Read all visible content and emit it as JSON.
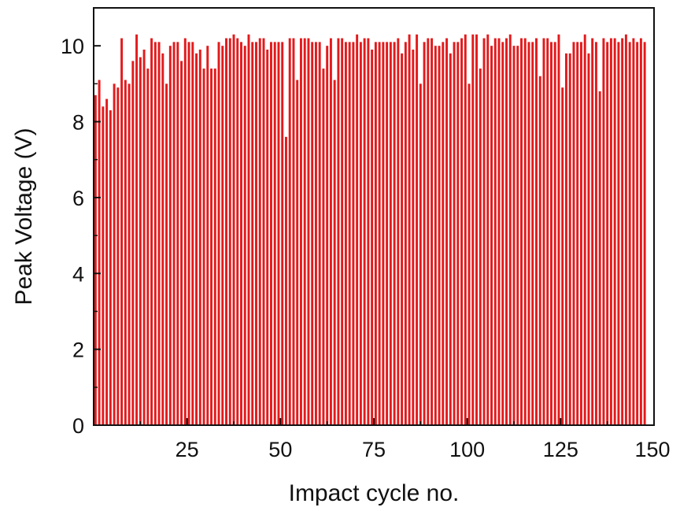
{
  "chart_data": {
    "type": "bar",
    "title": "",
    "xlabel": "Impact cycle no.",
    "ylabel": "Peak Voltage (V)",
    "xlim": [
      0,
      150
    ],
    "ylim": [
      0,
      11
    ],
    "xticks": [
      25,
      50,
      75,
      100,
      125,
      150
    ],
    "yticks": [
      0,
      2,
      4,
      6,
      8,
      10
    ],
    "grid": false,
    "legend": "none",
    "bar_color": "#e31a1c",
    "series": [
      {
        "values": [
          8.7,
          9.1,
          8.4,
          8.6,
          8.3,
          9.0,
          8.9,
          10.2,
          9.1,
          9.0,
          9.6,
          10.3,
          9.7,
          9.9,
          9.4,
          10.2,
          10.1,
          10.1,
          9.8,
          9.0,
          10.0,
          10.1,
          10.1,
          9.6,
          10.2,
          10.1,
          10.1,
          9.8,
          9.9,
          9.4,
          10.0,
          9.4,
          9.4,
          10.1,
          10.0,
          10.2,
          10.2,
          10.3,
          10.2,
          10.1,
          10.0,
          10.3,
          10.1,
          10.1,
          10.2,
          10.2,
          9.9,
          10.1,
          10.1,
          10.1,
          10.1,
          7.6,
          10.2,
          10.2,
          9.1,
          10.2,
          10.2,
          10.2,
          10.1,
          10.1,
          10.1,
          9.4,
          10.0,
          10.2,
          9.1,
          10.2,
          10.2,
          10.1,
          10.1,
          10.1,
          10.3,
          10.1,
          10.2,
          10.2,
          9.9,
          10.1,
          10.1,
          10.1,
          10.1,
          10.1,
          10.1,
          10.2,
          9.8,
          10.1,
          10.3,
          9.9,
          10.3,
          9.0,
          10.1,
          10.2,
          10.2,
          10.0,
          10.0,
          10.1,
          10.2,
          9.8,
          10.1,
          10.1,
          10.2,
          10.3,
          9.0,
          10.3,
          10.3,
          9.4,
          10.2,
          10.3,
          10.0,
          10.2,
          10.2,
          10.1,
          10.2,
          10.3,
          10.0,
          10.0,
          10.2,
          10.2,
          10.1,
          10.1,
          10.2,
          9.2,
          10.2,
          10.2,
          10.1,
          10.1,
          10.3,
          8.9,
          9.8,
          9.8,
          10.1,
          10.1,
          10.1,
          10.3,
          9.8,
          10.2,
          10.1,
          8.8,
          10.2,
          10.1,
          10.2,
          10.2,
          10.1,
          10.2,
          10.3,
          10.1,
          10.2,
          10.1,
          10.2,
          10.1
        ]
      }
    ]
  }
}
